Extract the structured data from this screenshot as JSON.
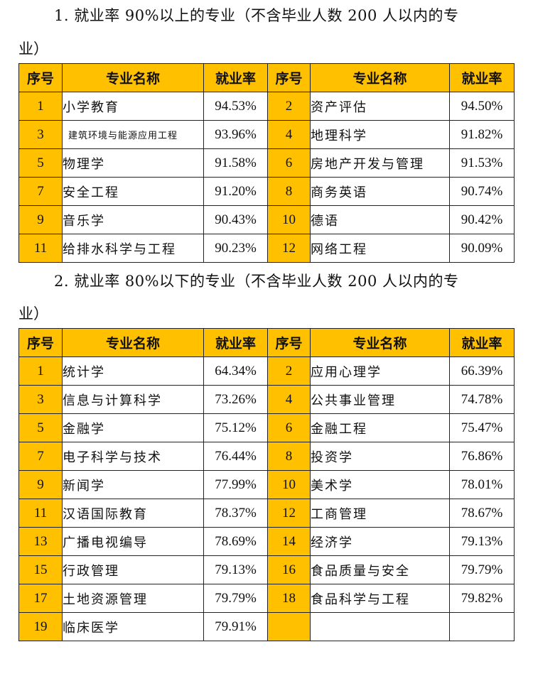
{
  "section1": {
    "title_line1": "1. 就业率 90%以上的专业（不含毕业人数 200 人以内的专",
    "title_line2": "业）",
    "headers": [
      "序号",
      "专业名称",
      "就业率",
      "序号",
      "专业名称",
      "就业率"
    ],
    "rows": [
      [
        {
          "no": "1",
          "name": "小学教育",
          "rate": "94.53%"
        },
        {
          "no": "2",
          "name": "资产评估",
          "rate": "94.50%"
        }
      ],
      [
        {
          "no": "3",
          "name": "建筑环境与能源应用工程",
          "rate": "93.96%"
        },
        {
          "no": "4",
          "name": "地理科学",
          "rate": "91.82%"
        }
      ],
      [
        {
          "no": "5",
          "name": "物理学",
          "rate": "91.58%"
        },
        {
          "no": "6",
          "name": "房地产开发与管理",
          "rate": "91.53%"
        }
      ],
      [
        {
          "no": "7",
          "name": "安全工程",
          "rate": "91.20%"
        },
        {
          "no": "8",
          "name": "商务英语",
          "rate": "90.74%"
        }
      ],
      [
        {
          "no": "9",
          "name": "音乐学",
          "rate": "90.43%"
        },
        {
          "no": "10",
          "name": "德语",
          "rate": "90.42%"
        }
      ],
      [
        {
          "no": "11",
          "name": "给排水科学与工程",
          "rate": "90.23%"
        },
        {
          "no": "12",
          "name": "网络工程",
          "rate": "90.09%"
        }
      ]
    ]
  },
  "section2": {
    "title_line1": "2. 就业率 80%以下的专业（不含毕业人数 200 人以内的专",
    "title_line2": "业）",
    "headers": [
      "序号",
      "专业名称",
      "就业率",
      "序号",
      "专业名称",
      "就业率"
    ],
    "rows": [
      [
        {
          "no": "1",
          "name": "统计学",
          "rate": "64.34%"
        },
        {
          "no": "2",
          "name": "应用心理学",
          "rate": "66.39%"
        }
      ],
      [
        {
          "no": "3",
          "name": "信息与计算科学",
          "rate": "73.26%"
        },
        {
          "no": "4",
          "name": "公共事业管理",
          "rate": "74.78%"
        }
      ],
      [
        {
          "no": "5",
          "name": "金融学",
          "rate": "75.12%"
        },
        {
          "no": "6",
          "name": "金融工程",
          "rate": "75.47%"
        }
      ],
      [
        {
          "no": "7",
          "name": "电子科学与技术",
          "rate": "76.44%"
        },
        {
          "no": "8",
          "name": "投资学",
          "rate": "76.86%"
        }
      ],
      [
        {
          "no": "9",
          "name": "新闻学",
          "rate": "77.99%"
        },
        {
          "no": "10",
          "name": "美术学",
          "rate": "78.01%"
        }
      ],
      [
        {
          "no": "11",
          "name": "汉语国际教育",
          "rate": "78.37%"
        },
        {
          "no": "12",
          "name": "工商管理",
          "rate": "78.67%"
        }
      ],
      [
        {
          "no": "13",
          "name": "广播电视编导",
          "rate": "78.69%"
        },
        {
          "no": "14",
          "name": "经济学",
          "rate": "79.13%"
        }
      ],
      [
        {
          "no": "15",
          "name": "行政管理",
          "rate": "79.13%"
        },
        {
          "no": "16",
          "name": "食品质量与安全",
          "rate": "79.79%"
        }
      ],
      [
        {
          "no": "17",
          "name": "土地资源管理",
          "rate": "79.79%"
        },
        {
          "no": "18",
          "name": "食品科学与工程",
          "rate": "79.82%"
        }
      ],
      [
        {
          "no": "19",
          "name": "临床医学",
          "rate": "79.91%"
        },
        {
          "no": "",
          "name": "",
          "rate": ""
        }
      ]
    ]
  },
  "colors": {
    "header_fill": "#FFC000",
    "border": "#222222"
  }
}
